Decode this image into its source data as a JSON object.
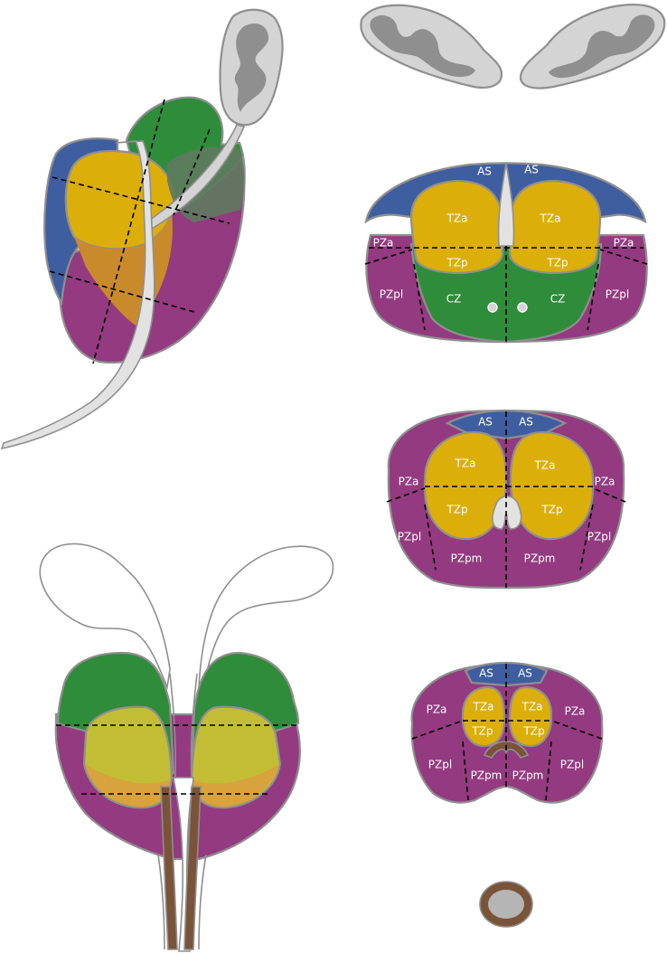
{
  "colors": {
    "anterior_stroma": "#3f5ea0",
    "transition_zone": "#dcae0a",
    "central_zone": "#2f8c3a",
    "peripheral_zone": "#943a80",
    "overlap_orange": "#c98a2c",
    "overlap_olive": "#c3bd36",
    "overlap_tan": "#d8a23c",
    "seminal_gray": "#d4d4d4",
    "seminal_dark": "#8f8f8f",
    "ejaculatory_brown": "#7a5338",
    "urethra_fill": "#e2e2e2",
    "outline": "#8f8f8f"
  },
  "section_vesicles": {
    "labels": []
  },
  "section_base": {
    "labels": {
      "as_left": "AS",
      "as_right": "AS",
      "tza_left": "TZa",
      "tza_right": "TZa",
      "pza_left": "PZa",
      "pza_right": "PZa",
      "tzp_left": "TZp",
      "tzp_right": "TZp",
      "pzpl_left": "PZpl",
      "pzpl_right": "PZpl",
      "cz_left": "CZ",
      "cz_right": "CZ"
    }
  },
  "section_mid": {
    "labels": {
      "as_left": "AS",
      "as_right": "AS",
      "tza_left": "TZa",
      "tza_right": "TZa",
      "pza_left": "PZa",
      "pza_right": "PZa",
      "tzp_left": "TZp",
      "tzp_right": "TZp",
      "pzpl_left": "PZpl",
      "pzpl_right": "PZpl",
      "pzpm_left": "PZpm",
      "pzpm_right": "PZpm"
    }
  },
  "section_apex": {
    "labels": {
      "as_left": "AS",
      "as_right": "AS",
      "tza_left": "TZa",
      "tza_right": "TZa",
      "pza_left": "PZa",
      "pza_right": "PZa",
      "tzp_left": "TZp",
      "tzp_right": "TZp",
      "pzpl_left": "PZpl",
      "pzpl_right": "PZpl",
      "pzpm_left": "PZpm",
      "pzpm_right": "PZpm"
    }
  }
}
